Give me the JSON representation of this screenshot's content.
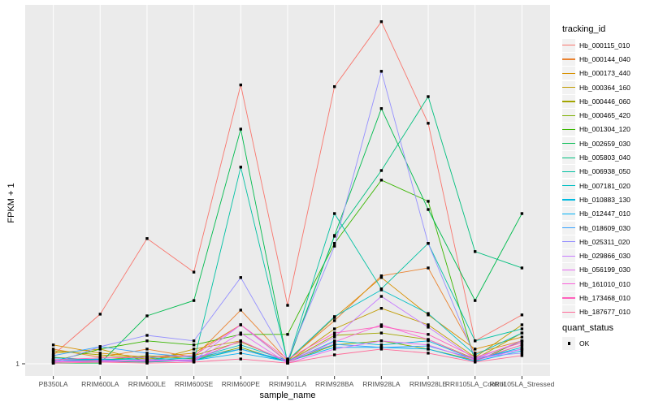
{
  "colors": {
    "panel_bg": "#EBEBEB",
    "grid": "#FFFFFF",
    "axis_text": "#4D4D4D",
    "tick_mark": "#333333",
    "legend_key_bg": "#F2F2F2",
    "point": "#000000"
  },
  "legend": {
    "tracking_title": "tracking_id",
    "quant_title": "quant_status",
    "quant_items": [
      {
        "label": "OK"
      }
    ]
  },
  "chart_data": {
    "type": "line",
    "title": "",
    "xlabel": "sample_name",
    "ylabel": "FPKM + 1",
    "y_tick_label": "1",
    "value_note": "y axis shows only the tick '1' at the baseline; series values are relative plotted heights on a 0-100 scale (100 = tallest peak, 0 = baseline at FPKM+1 = 1)",
    "ylim": [
      0,
      107
    ],
    "grid": "vertical white majors per category, one horizontal major at baseline 1",
    "legend_position": "right",
    "marker": "black square (quant_status OK)",
    "categories": [
      "PB350LA",
      "RRIM600LA",
      "RRIM600LE",
      "RRIM600SE",
      "RRIM600PE",
      "RRIM901LA",
      "RRIM928BA",
      "RRIM928LA",
      "RRIM928LE",
      "RRII105LA_Control",
      "RRII105LA_Stressed"
    ],
    "series": [
      {
        "name": "Hb_000115_010",
        "color": "#F8766D",
        "values": [
          2.6,
          14.5,
          36.6,
          26.8,
          81.5,
          17.1,
          81.0,
          100,
          70.3,
          6.7,
          14.3
        ]
      },
      {
        "name": "Hb_000144_040",
        "color": "#EA8331",
        "values": [
          4.3,
          1.9,
          4.3,
          1.9,
          15.7,
          1.0,
          12.6,
          25.7,
          28.0,
          3.1,
          6.7
        ]
      },
      {
        "name": "Hb_000173_440",
        "color": "#D89000",
        "values": [
          5.5,
          3.1,
          1.9,
          3.1,
          11.4,
          0.7,
          13.5,
          25.2,
          14.3,
          4.3,
          7.8
        ]
      },
      {
        "name": "Hb_000364_160",
        "color": "#C09B00",
        "values": [
          3.1,
          4.3,
          0.7,
          4.3,
          6.7,
          0.5,
          10.2,
          16.2,
          11.4,
          1.9,
          11.4
        ]
      },
      {
        "name": "Hb_000446_060",
        "color": "#A3A500",
        "values": [
          3.8,
          2.6,
          1.4,
          2.4,
          6.4,
          0.7,
          8.3,
          9.0,
          7.1,
          1.4,
          9.0
        ]
      },
      {
        "name": "Hb_000465_420",
        "color": "#7CAE00",
        "values": [
          1.9,
          1.0,
          2.4,
          1.4,
          4.8,
          0.5,
          5.5,
          6.7,
          4.3,
          1.0,
          5.5
        ]
      },
      {
        "name": "Hb_001304_120",
        "color": "#39B600",
        "values": [
          0.7,
          4.3,
          6.7,
          5.5,
          8.6,
          8.6,
          35.2,
          53.7,
          47.5,
          0.7,
          6.7
        ]
      },
      {
        "name": "Hb_002659_030",
        "color": "#00BB4E",
        "values": [
          0.2,
          0.2,
          14.0,
          18.5,
          68.6,
          0.2,
          37.5,
          74.6,
          45.1,
          18.5,
          43.9
        ]
      },
      {
        "name": "Hb_005803_040",
        "color": "#00BF7D",
        "values": [
          0.5,
          0.7,
          0.5,
          1.0,
          4.3,
          0.7,
          37.3,
          56.5,
          78.1,
          32.8,
          28.0
        ]
      },
      {
        "name": "Hb_006938_050",
        "color": "#00C1A3",
        "values": [
          1.2,
          1.0,
          1.9,
          0.7,
          57.5,
          0.5,
          43.9,
          21.9,
          35.2,
          6.7,
          10.2
        ]
      },
      {
        "name": "Hb_007181_020",
        "color": "#00BFC4",
        "values": [
          1.0,
          1.4,
          1.2,
          1.7,
          5.5,
          1.0,
          13.8,
          21.6,
          14.7,
          2.6,
          9.0
        ]
      },
      {
        "name": "Hb_010883_130",
        "color": "#00BAE0",
        "values": [
          1.2,
          0.7,
          1.0,
          1.2,
          4.3,
          0.5,
          6.7,
          5.5,
          6.7,
          1.2,
          4.8
        ]
      },
      {
        "name": "Hb_012447_010",
        "color": "#00B0F6",
        "values": [
          1.7,
          1.2,
          0.7,
          1.0,
          3.1,
          0.7,
          4.8,
          4.8,
          4.3,
          0.7,
          3.8
        ]
      },
      {
        "name": "Hb_018609_030",
        "color": "#35A2FF",
        "values": [
          2.4,
          5.0,
          3.1,
          1.9,
          4.3,
          1.0,
          5.7,
          4.8,
          5.2,
          1.4,
          4.3
        ]
      },
      {
        "name": "Hb_025311_020",
        "color": "#9590FF",
        "values": [
          0.2,
          5.0,
          8.3,
          6.7,
          25.2,
          1.2,
          34.4,
          85.5,
          35.2,
          1.9,
          3.1
        ]
      },
      {
        "name": "Hb_029866_030",
        "color": "#C77CFF",
        "values": [
          1.0,
          0.7,
          1.2,
          1.0,
          11.4,
          0.5,
          7.8,
          19.7,
          10.7,
          1.4,
          6.7
        ]
      },
      {
        "name": "Hb_056199_030",
        "color": "#E76BF3",
        "values": [
          0.7,
          0.5,
          1.0,
          0.7,
          9.0,
          0.2,
          4.3,
          6.7,
          5.5,
          1.0,
          4.3
        ]
      },
      {
        "name": "Hb_161010_010",
        "color": "#FA62DB",
        "values": [
          0.5,
          1.0,
          0.7,
          1.2,
          6.7,
          0.5,
          6.4,
          11.4,
          7.1,
          1.2,
          5.5
        ]
      },
      {
        "name": "Hb_173468_010",
        "color": "#FF62BC",
        "values": [
          1.2,
          1.7,
          1.9,
          2.4,
          11.4,
          1.4,
          9.0,
          10.9,
          8.6,
          1.9,
          6.2
        ]
      },
      {
        "name": "Hb_187677_010",
        "color": "#FF6A98",
        "values": [
          0.2,
          0.5,
          0.2,
          0.5,
          1.4,
          0.2,
          2.6,
          4.3,
          3.1,
          0.5,
          2.4
        ]
      }
    ]
  }
}
